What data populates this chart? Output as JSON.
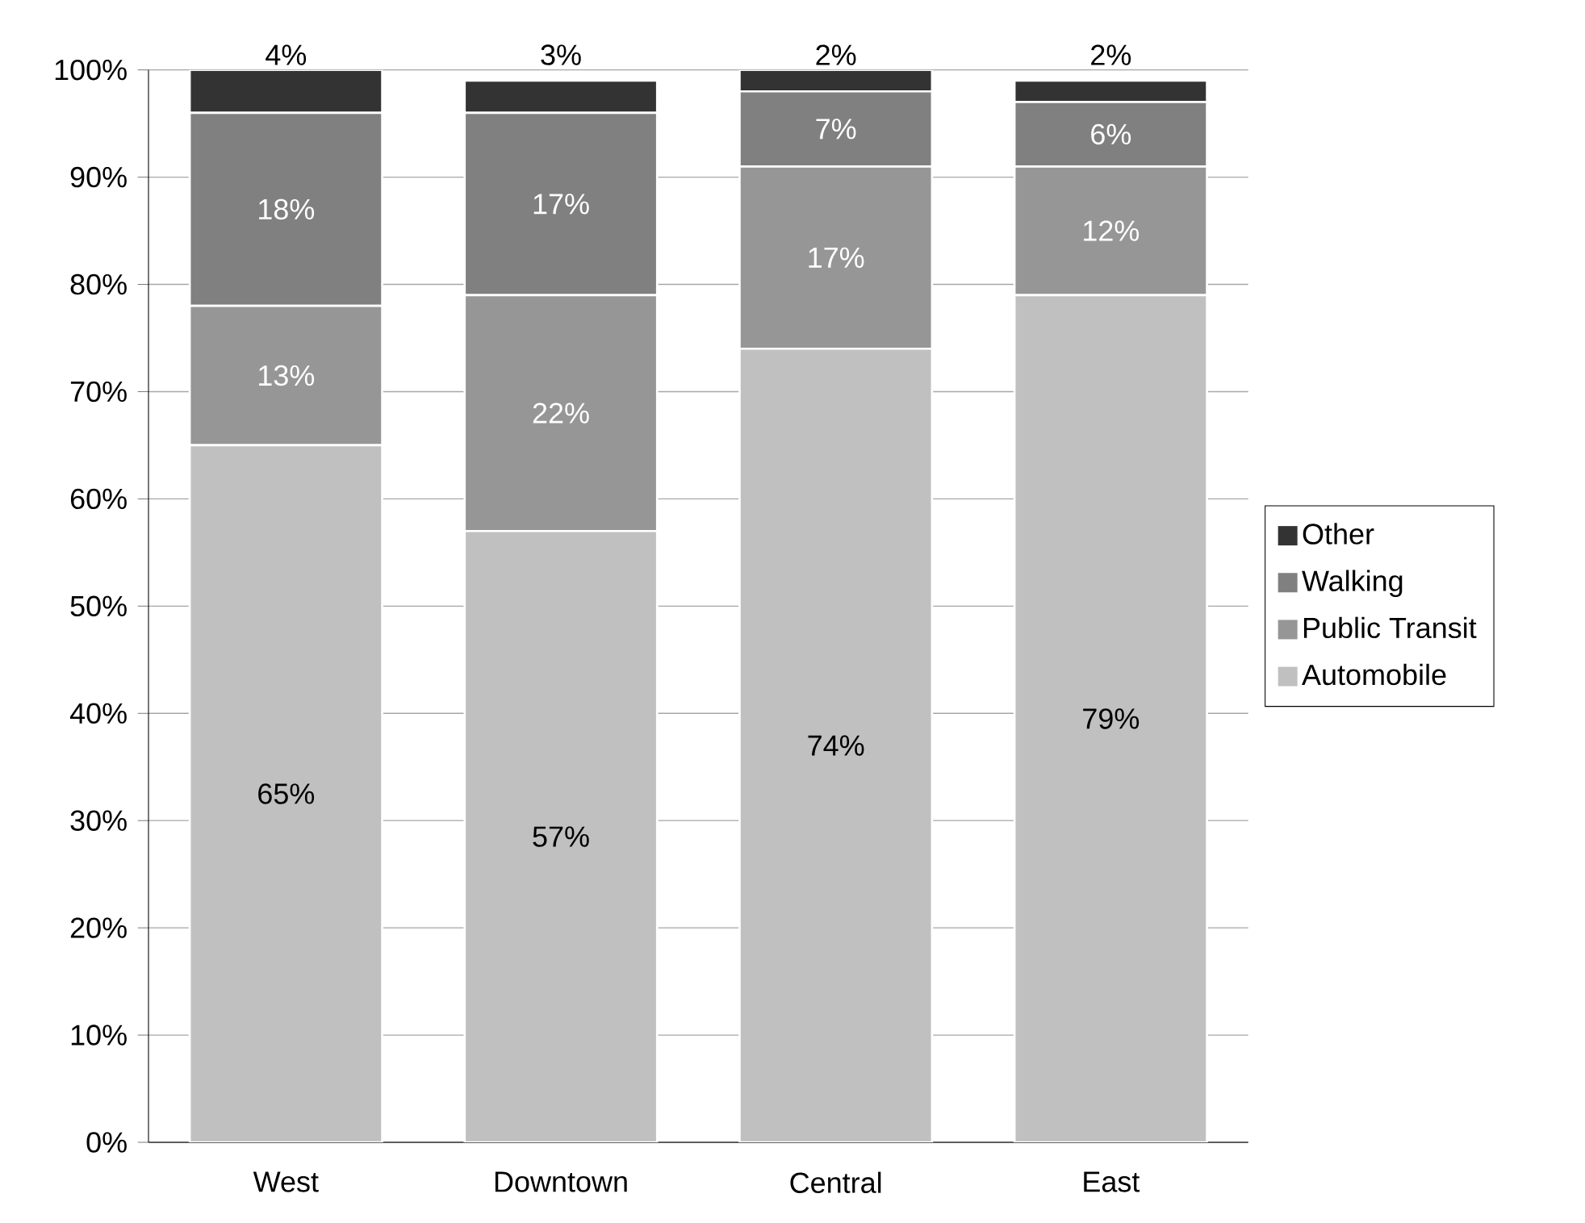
{
  "chart_data": {
    "type": "bar",
    "stacked": true,
    "categories": [
      "West",
      "Downtown",
      "Central",
      "East"
    ],
    "series": [
      {
        "name": "Automobile",
        "color": "#c0c0c0",
        "values": [
          65,
          57,
          74,
          79
        ],
        "value_labels": [
          "65%",
          "57%",
          "74%",
          "79%"
        ]
      },
      {
        "name": "Public Transit",
        "color": "#969696",
        "values": [
          13,
          22,
          17,
          12
        ],
        "value_labels": [
          "13%",
          "22%",
          "17%",
          "12%"
        ]
      },
      {
        "name": "Walking",
        "color": "#808080",
        "values": [
          18,
          17,
          7,
          6
        ],
        "value_labels": [
          "18%",
          "17%",
          "7%",
          "6%"
        ]
      },
      {
        "name": "Other",
        "color": "#333333",
        "values": [
          4,
          3,
          2,
          2
        ],
        "value_labels": [
          "4%",
          "3%",
          "2%",
          "2%"
        ]
      }
    ],
    "ylim": [
      0,
      100
    ],
    "yticks": [
      {
        "value": 0,
        "label": "0%"
      },
      {
        "value": 10,
        "label": "10%"
      },
      {
        "value": 20,
        "label": "20%"
      },
      {
        "value": 30,
        "label": "30%"
      },
      {
        "value": 40,
        "label": "40%"
      },
      {
        "value": 50,
        "label": "50%"
      },
      {
        "value": 60,
        "label": "60%"
      },
      {
        "value": 70,
        "label": "70%"
      },
      {
        "value": 80,
        "label": "80%"
      },
      {
        "value": 90,
        "label": "90%"
      },
      {
        "value": 100,
        "label": "100%"
      }
    ],
    "grid": "y",
    "legend": "right"
  }
}
